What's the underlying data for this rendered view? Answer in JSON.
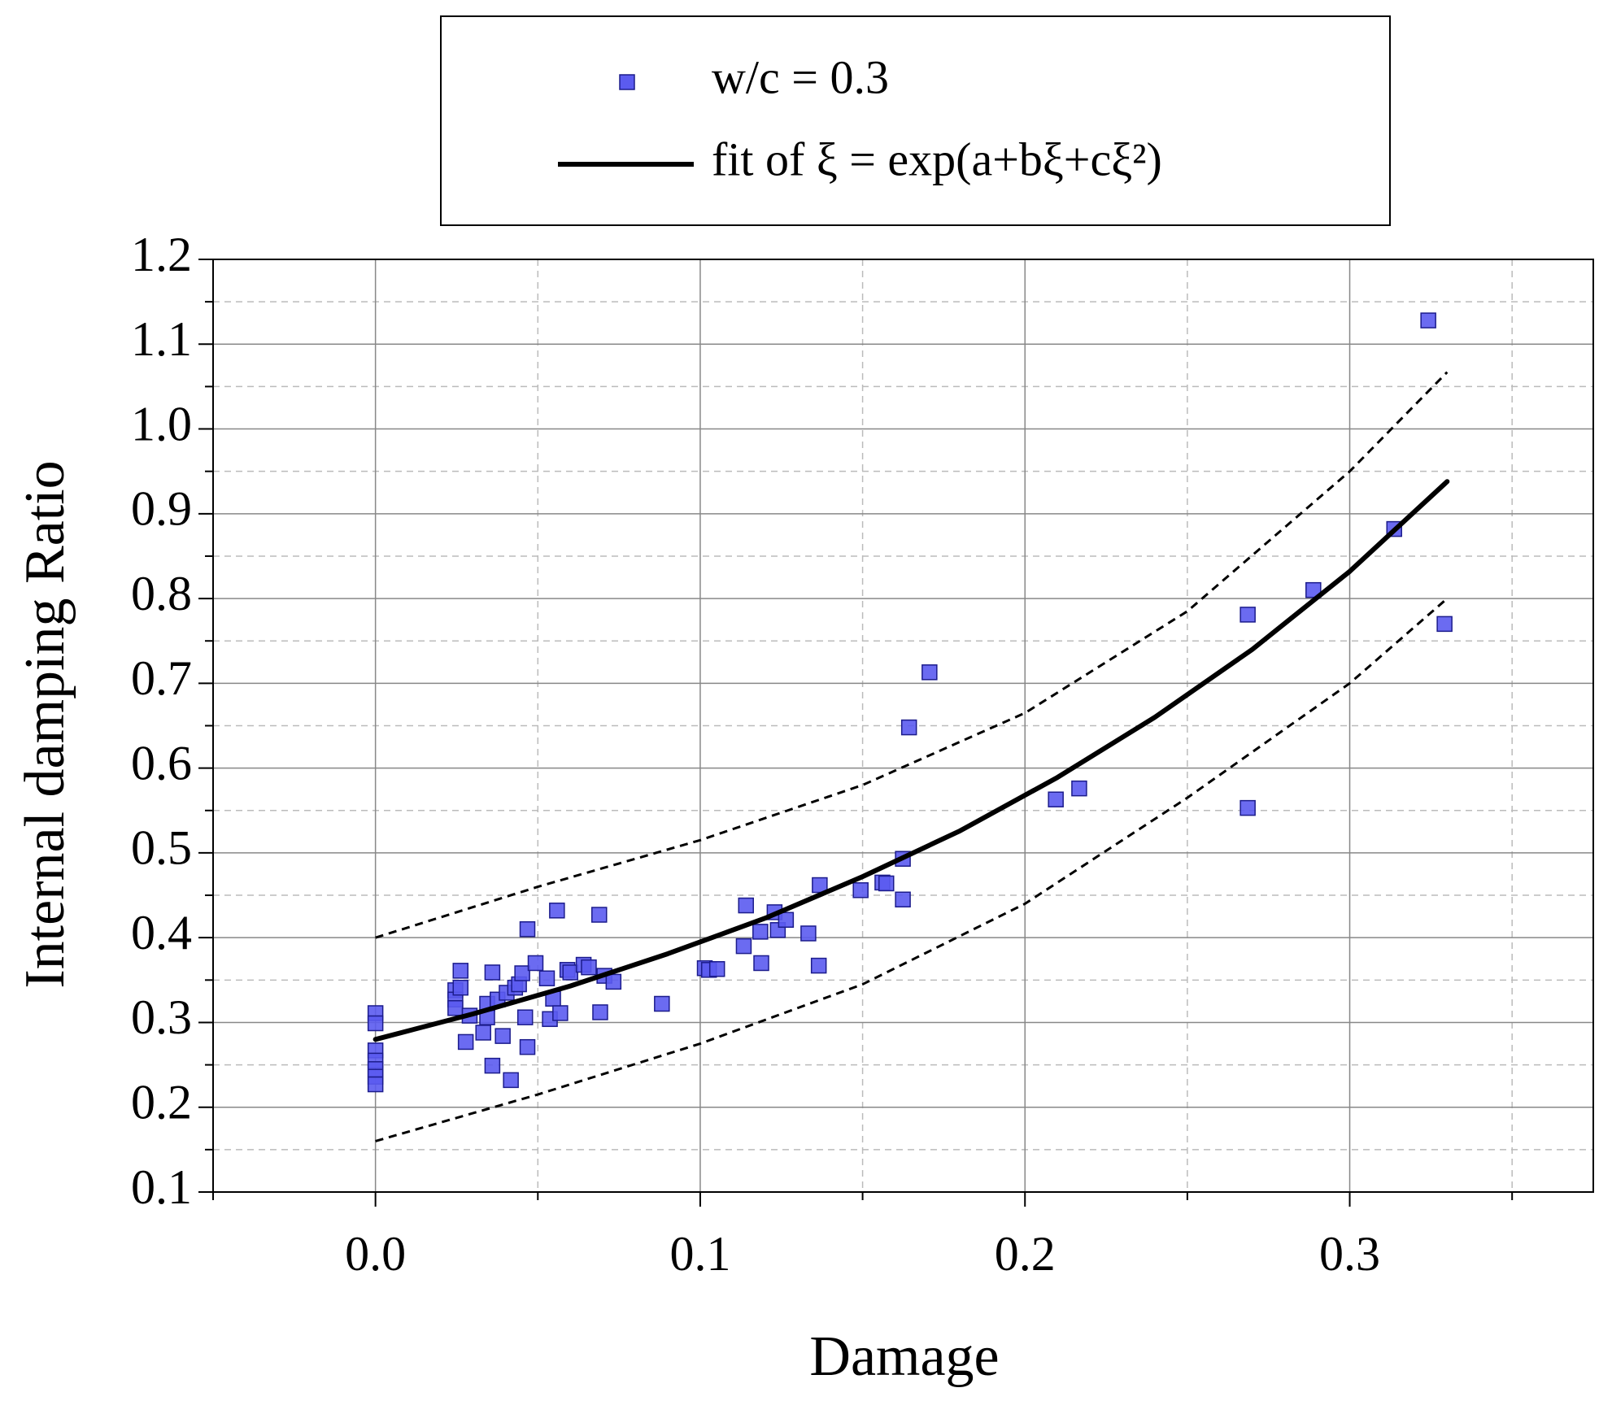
{
  "chart_data": {
    "type": "scatter",
    "x_label": "Damage",
    "y_label": "Internal damping Ratio",
    "xlim": [
      -0.05,
      0.375
    ],
    "ylim": [
      0.1,
      1.2
    ],
    "xticks": [
      {
        "value": 0,
        "label": "0.0"
      },
      0.1,
      0.2,
      0.3
    ],
    "xminor": [
      -0.05,
      0.05,
      0.15,
      0.25,
      0.35
    ],
    "yticks": [
      0.1,
      0.2,
      0.3,
      0.4,
      0.5,
      0.6,
      0.7,
      0.8,
      0.9,
      {
        "value": 1,
        "label": "1.0"
      },
      1.1,
      1.2
    ],
    "yminor": [
      0.15,
      0.25,
      0.35,
      0.45,
      0.55,
      0.65,
      0.75,
      0.85,
      0.95,
      1.05,
      1.15
    ],
    "grid": true,
    "series": [
      {
        "name": "w/c = 0.3",
        "type": "scatter",
        "color": "#5b5bef",
        "x": [
          0,
          0,
          0,
          0,
          0,
          0,
          0,
          0.0246,
          0.0246,
          0.0246,
          0.0262,
          0.0262,
          0.0278,
          0.029,
          0.0332,
          0.0344,
          0.0344,
          0.036,
          0.036,
          0.0376,
          0.0392,
          0.0404,
          0.0417,
          0.043,
          0.0442,
          0.0452,
          0.0461,
          0.0468,
          0.0468,
          0.0493,
          0.0528,
          0.0537,
          0.0547,
          0.0559,
          0.0569,
          0.0591,
          0.06,
          0.0641,
          0.0657,
          0.0689,
          0.0692,
          0.0705,
          0.0733,
          0.0882,
          0.1014,
          0.1027,
          0.1052,
          0.1134,
          0.1141,
          0.1185,
          0.1188,
          0.1229,
          0.1239,
          0.1264,
          0.1333,
          0.1365,
          0.1368,
          0.1494,
          0.1561,
          0.1573,
          0.1624,
          0.1624,
          0.1643,
          0.1706,
          0.2095,
          0.2167,
          0.2686,
          0.2686,
          0.2888,
          0.3137,
          0.3242,
          0.3292
        ],
        "values": [
          0.311,
          0.299,
          0.267,
          0.255,
          0.245,
          0.236,
          0.227,
          0.338,
          0.327,
          0.317,
          0.361,
          0.341,
          0.277,
          0.308,
          0.288,
          0.322,
          0.306,
          0.359,
          0.249,
          0.327,
          0.284,
          0.335,
          0.232,
          0.341,
          0.345,
          0.358,
          0.306,
          0.41,
          0.271,
          0.37,
          0.352,
          0.304,
          0.328,
          0.432,
          0.311,
          0.362,
          0.359,
          0.368,
          0.365,
          0.427,
          0.312,
          0.355,
          0.348,
          0.322,
          0.364,
          0.362,
          0.363,
          0.39,
          0.438,
          0.407,
          0.37,
          0.43,
          0.409,
          0.421,
          0.405,
          0.367,
          0.462,
          0.456,
          0.465,
          0.464,
          0.493,
          0.445,
          0.648,
          0.713,
          0.563,
          0.576,
          0.781,
          0.553,
          0.81,
          0.882,
          1.128,
          0.77
        ]
      },
      {
        "name": "fit of ξ = exp(a+bξ+cξ²)",
        "type": "line",
        "color": "#000000",
        "x": [
          0,
          0.03,
          0.06,
          0.09,
          0.12,
          0.15,
          0.18,
          0.21,
          0.24,
          0.27,
          0.3,
          0.33
        ],
        "values": [
          0.28,
          0.31,
          0.343,
          0.381,
          0.423,
          0.472,
          0.526,
          0.589,
          0.66,
          0.74,
          0.832,
          0.938
        ]
      },
      {
        "type": "dashed",
        "color": "#000000",
        "x": [
          0,
          0.05,
          0.1,
          0.15,
          0.2,
          0.25,
          0.3,
          0.33
        ],
        "values": [
          0.4,
          0.46,
          0.515,
          0.58,
          0.665,
          0.785,
          0.95,
          1.067
        ]
      },
      {
        "type": "dashed",
        "color": "#000000",
        "x": [
          0,
          0.05,
          0.1,
          0.15,
          0.2,
          0.25,
          0.3,
          0.33
        ],
        "values": [
          0.16,
          0.215,
          0.275,
          0.345,
          0.44,
          0.565,
          0.7,
          0.8
        ]
      }
    ]
  }
}
